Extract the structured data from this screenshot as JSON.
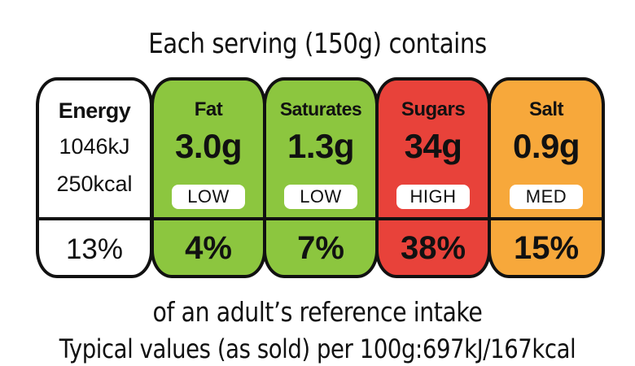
{
  "title": "Each serving (150g) contains",
  "energy": {
    "label": "Energy",
    "kj": "1046kJ",
    "kcal": "250kcal",
    "percent": "13%",
    "color": "#ffffff"
  },
  "nutrients": [
    {
      "label": "Fat",
      "amount": "3.0g",
      "level": "LOW",
      "percent": "4%",
      "color": "#8cc63f"
    },
    {
      "label": "Saturates",
      "amount": "1.3g",
      "level": "LOW",
      "percent": "7%",
      "color": "#8cc63f"
    },
    {
      "label": "Sugars",
      "amount": "34g",
      "level": "HIGH",
      "percent": "38%",
      "color": "#e8423a"
    },
    {
      "label": "Salt",
      "amount": "0.9g",
      "level": "MED",
      "percent": "15%",
      "color": "#f7a83b"
    }
  ],
  "reference_note": "of an adult’s reference intake",
  "typical_values": "Typical values (as sold) per 100g:697kJ/167kcal"
}
